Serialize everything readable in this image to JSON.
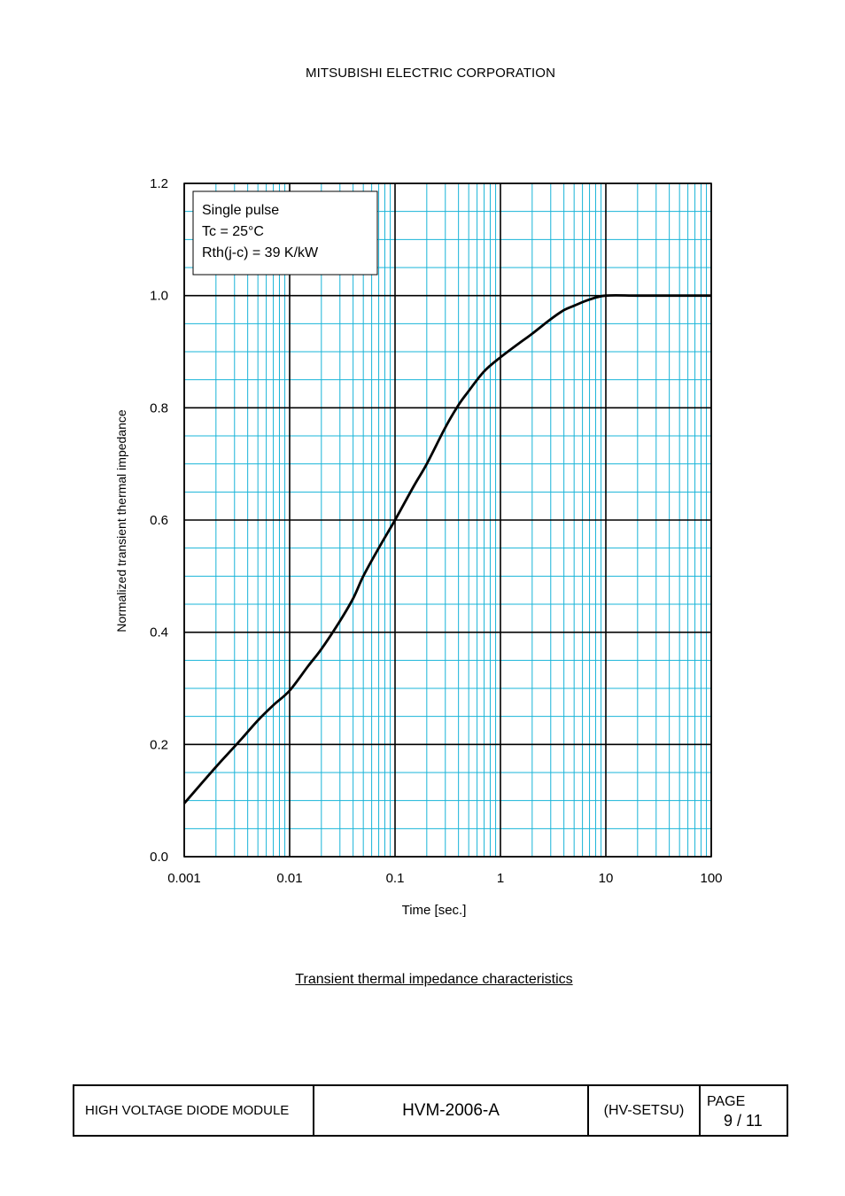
{
  "header": {
    "company": "MITSUBISHI ELECTRIC CORPORATION"
  },
  "chart_data": {
    "type": "line",
    "xscale": "log",
    "xlim": [
      0.001,
      100
    ],
    "ylim": [
      0.0,
      1.2
    ],
    "xlabel": "Time [sec.]",
    "ylabel": "Normalized transient thermal impedance",
    "xticks": [
      {
        "value": 0.001,
        "label": "0.001"
      },
      {
        "value": 0.01,
        "label": "0.01"
      },
      {
        "value": 0.1,
        "label": "0.1"
      },
      {
        "value": 1,
        "label": "1"
      },
      {
        "value": 10,
        "label": "10"
      },
      {
        "value": 100,
        "label": "100"
      }
    ],
    "yticks": [
      {
        "value": 0.0,
        "label": "0.0"
      },
      {
        "value": 0.2,
        "label": "0.2"
      },
      {
        "value": 0.4,
        "label": "0.4"
      },
      {
        "value": 0.6,
        "label": "0.6"
      },
      {
        "value": 0.8,
        "label": "0.8"
      },
      {
        "value": 1.0,
        "label": "1.0"
      },
      {
        "value": 1.2,
        "label": "1.2"
      }
    ],
    "grid": true,
    "annotation": [
      "Single pulse",
      "Tc = 25°C",
      "Rth(j-c) = 39 K/kW"
    ],
    "series": [
      {
        "x": [
          0.001,
          0.002,
          0.0035,
          0.005,
          0.007,
          0.01,
          0.015,
          0.02,
          0.03,
          0.04,
          0.05,
          0.07,
          0.1,
          0.15,
          0.2,
          0.3,
          0.4,
          0.5,
          0.7,
          1,
          1.5,
          2,
          3,
          4,
          5,
          7,
          10,
          20,
          50,
          100
        ],
        "y": [
          0.095,
          0.16,
          0.21,
          0.243,
          0.27,
          0.296,
          0.34,
          0.37,
          0.42,
          0.46,
          0.5,
          0.55,
          0.6,
          0.66,
          0.7,
          0.765,
          0.805,
          0.83,
          0.865,
          0.89,
          0.915,
          0.932,
          0.958,
          0.974,
          0.982,
          0.993,
          1.0,
          1.0,
          1.0,
          1.0
        ]
      }
    ],
    "colors": {
      "major_grid": "#000000",
      "minor_grid": "#19b4d8",
      "curve": "#000000"
    },
    "caption": "Transient thermal impedance characteristics"
  },
  "footer": {
    "product": "HIGH VOLTAGE DIODE MODULE",
    "doc_no": "HVM-2006-A",
    "code": "(HV-SETSU)",
    "page_label": "PAGE",
    "page": "9 / 11"
  }
}
